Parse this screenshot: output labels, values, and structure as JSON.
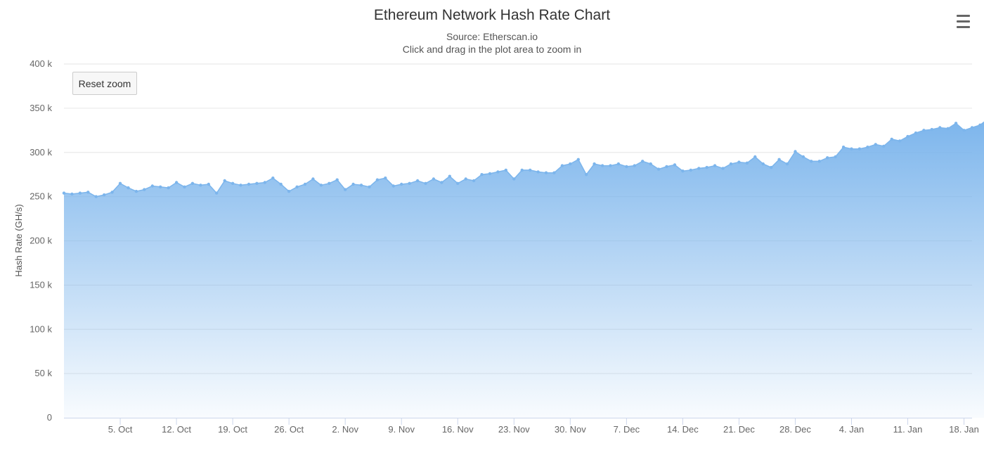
{
  "header": {
    "title": "Ethereum Network Hash Rate Chart",
    "subtitle_source": "Source: Etherscan.io",
    "subtitle_hint": "Click and drag in the plot area to zoom in"
  },
  "toolbar": {
    "reset_label": "Reset zoom",
    "menu_icon": "hamburger-menu-icon"
  },
  "colors": {
    "series": "#7cb5ec",
    "grid": "#e6e6e6",
    "axis": "#ccd6eb"
  },
  "chart_data": {
    "type": "area",
    "title": "Ethereum Network Hash Rate Chart",
    "subtitle": "Source: Etherscan.io",
    "ylabel": "Hash Rate (GH/s)",
    "xlabel": "",
    "ylim": [
      0,
      400000
    ],
    "y_ticks": [
      "0",
      "50 k",
      "100 k",
      "150 k",
      "200 k",
      "250 k",
      "300 k",
      "350 k",
      "400 k"
    ],
    "x_range": [
      "2017-09-28",
      "2018-01-19"
    ],
    "x_ticks": [
      {
        "date": "2017-10-05",
        "label": "5. Oct"
      },
      {
        "date": "2017-10-12",
        "label": "12. Oct"
      },
      {
        "date": "2017-10-19",
        "label": "19. Oct"
      },
      {
        "date": "2017-10-26",
        "label": "26. Oct"
      },
      {
        "date": "2017-11-02",
        "label": "2. Nov"
      },
      {
        "date": "2017-11-09",
        "label": "9. Nov"
      },
      {
        "date": "2017-11-16",
        "label": "16. Nov"
      },
      {
        "date": "2017-11-23",
        "label": "23. Nov"
      },
      {
        "date": "2017-11-30",
        "label": "30. Nov"
      },
      {
        "date": "2017-12-07",
        "label": "7. Dec"
      },
      {
        "date": "2017-12-14",
        "label": "14. Dec"
      },
      {
        "date": "2017-12-21",
        "label": "21. Dec"
      },
      {
        "date": "2017-12-28",
        "label": "28. Dec"
      },
      {
        "date": "2018-01-04",
        "label": "4. Jan"
      },
      {
        "date": "2018-01-11",
        "label": "11. Jan"
      },
      {
        "date": "2018-01-18",
        "label": "18. Jan"
      }
    ],
    "grid": true,
    "legend": "none",
    "series": [
      {
        "start_date": "2017-09-28",
        "interval_days": 1,
        "values": [
          254000,
          253000,
          254000,
          255000,
          250000,
          252000,
          255000,
          265000,
          260000,
          256000,
          258000,
          262000,
          261000,
          260000,
          266000,
          261000,
          265000,
          263000,
          264000,
          254000,
          268000,
          265000,
          263000,
          264000,
          265000,
          266000,
          271000,
          264000,
          256000,
          261000,
          264000,
          270000,
          263000,
          265000,
          269000,
          258000,
          264000,
          263000,
          261000,
          269000,
          271000,
          262000,
          264000,
          265000,
          268000,
          265000,
          270000,
          266000,
          273000,
          265000,
          270000,
          268000,
          275000,
          276000,
          278000,
          280000,
          270000,
          280000,
          280000,
          278000,
          277000,
          277000,
          285000,
          287000,
          292000,
          275000,
          287000,
          285000,
          285000,
          287000,
          284000,
          285000,
          290000,
          287000,
          281000,
          284000,
          286000,
          279000,
          280000,
          282000,
          283000,
          285000,
          282000,
          287000,
          289000,
          288000,
          295000,
          287000,
          283000,
          292000,
          287000,
          301000,
          295000,
          290000,
          290000,
          294000,
          295000,
          306000,
          304000,
          304000,
          306000,
          309000,
          307000,
          315000,
          313000,
          318000,
          322000,
          325000,
          326000,
          328000,
          327000,
          333000,
          325000,
          328000,
          331000,
          338000
        ]
      }
    ]
  }
}
